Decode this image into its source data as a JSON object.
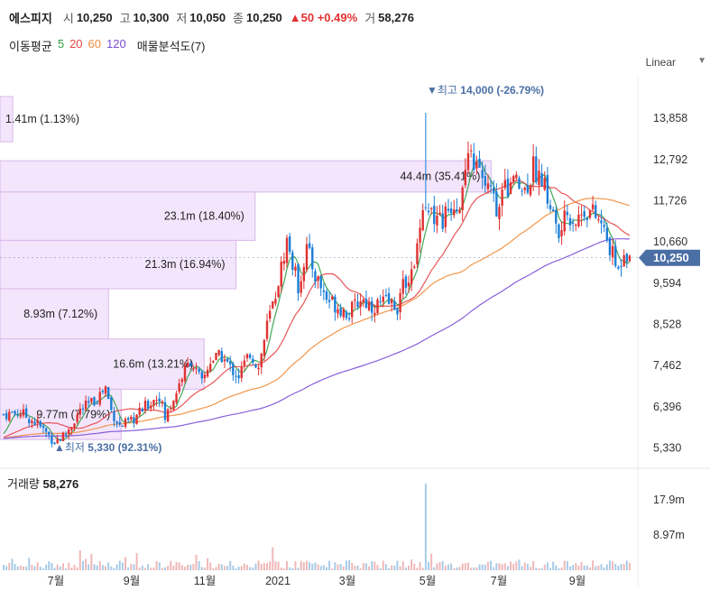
{
  "header": {
    "name": "에스피지",
    "open_label": "시",
    "open": "10,250",
    "high_label": "고",
    "high": "10,300",
    "low_label": "저",
    "low": "10,050",
    "close_label": "종",
    "close": "10,250",
    "change": "▲50 +0.49%",
    "vol_label": "거",
    "volume": "58,276"
  },
  "ma": {
    "label": "이동평균",
    "periods": [
      "5",
      "20",
      "60",
      "120"
    ],
    "colors": [
      "#2f9e44",
      "#e64545",
      "#f08c3a",
      "#7b4fd6"
    ],
    "vp_label": "매물분석도(7)"
  },
  "scale_button": "Linear",
  "colors": {
    "up": "#e03131",
    "down": "#1c7ed6",
    "vp": "#f3e5fb",
    "vp_border": "#d9b8ea"
  },
  "chart_data": [
    {
      "type": "candlestick",
      "title": "",
      "y_ticks": [
        13858,
        12792,
        11726,
        10660,
        9594,
        8528,
        7462,
        6396,
        5330
      ],
      "y_tick_labels": [
        "13,858",
        "12,792",
        "11,726",
        "10,660",
        "9,594",
        "8,528",
        "7,462",
        "6,396",
        "5,330"
      ],
      "ylim": [
        4900,
        14700
      ],
      "x_tick_labels": [
        "7월",
        "9월",
        "11월",
        "2021",
        "3월",
        "5월",
        "7월",
        "9월"
      ],
      "current_price": 10250,
      "current_price_label": "10,250",
      "max_marker": {
        "value": 14000,
        "label": "최고",
        "value_label": "14,000",
        "pct": "(-26.79%)"
      },
      "min_marker": {
        "value": 5330,
        "label": "최저",
        "value_label": "5,330",
        "pct": "(92.31%)"
      },
      "volume_profile": [
        {
          "low": 13250,
          "high": 14700,
          "value_label": "1.41m",
          "pct": "(1.13%)",
          "rel": 0.02
        },
        {
          "low": 11950,
          "high": 12760,
          "value_label": "44.4m",
          "pct": "(35.41%)",
          "rel": 0.77
        },
        {
          "low": 10700,
          "high": 11950,
          "value_label": "23.1m",
          "pct": "(18.40%)",
          "rel": 0.4
        },
        {
          "low": 9450,
          "high": 10700,
          "value_label": "21.3m",
          "pct": "(16.94%)",
          "rel": 0.37
        },
        {
          "low": 8150,
          "high": 9450,
          "value_label": "8.93m",
          "pct": "(7.12%)",
          "rel": 0.17
        },
        {
          "low": 6850,
          "high": 8150,
          "value_label": "16.6m",
          "pct": "(13.21%)",
          "rel": 0.32
        },
        {
          "low": 5550,
          "high": 6850,
          "value_label": "9.77m",
          "pct": "(7.79%)",
          "rel": 0.19
        }
      ],
      "price_path": [
        [
          0,
          6200
        ],
        [
          6,
          6250
        ],
        [
          12,
          5950
        ],
        [
          18,
          5500
        ],
        [
          22,
          5700
        ],
        [
          27,
          6300
        ],
        [
          32,
          6550
        ],
        [
          36,
          6900
        ],
        [
          38,
          6300
        ],
        [
          41,
          5900
        ],
        [
          45,
          6000
        ],
        [
          50,
          6400
        ],
        [
          55,
          6700
        ],
        [
          57,
          6100
        ],
        [
          60,
          6600
        ],
        [
          63,
          7200
        ],
        [
          66,
          7600
        ],
        [
          70,
          7000
        ],
        [
          73,
          7600
        ],
        [
          77,
          7700
        ],
        [
          80,
          7400
        ],
        [
          83,
          7200
        ],
        [
          87,
          7800
        ],
        [
          90,
          7400
        ],
        [
          93,
          8500
        ],
        [
          96,
          9300
        ],
        [
          100,
          10700
        ],
        [
          104,
          9500
        ],
        [
          107,
          10500
        ],
        [
          110,
          9800
        ],
        [
          114,
          9200
        ],
        [
          118,
          9000
        ],
        [
          122,
          8800
        ],
        [
          126,
          9200
        ],
        [
          130,
          9000
        ],
        [
          135,
          9100
        ],
        [
          139,
          9000
        ],
        [
          142,
          9700
        ],
        [
          145,
          9900
        ],
        [
          147,
          11300
        ],
        [
          149,
          11700
        ],
        [
          152,
          11400
        ],
        [
          155,
          11200
        ],
        [
          158,
          11600
        ],
        [
          161,
          11700
        ],
        [
          163,
          12400
        ],
        [
          165,
          12900
        ],
        [
          168,
          12400
        ],
        [
          171,
          12000
        ],
        [
          174,
          11600
        ],
        [
          177,
          12000
        ],
        [
          180,
          12200
        ],
        [
          184,
          12000
        ],
        [
          187,
          12600
        ],
        [
          190,
          12300
        ],
        [
          193,
          11600
        ],
        [
          196,
          10800
        ],
        [
          199,
          11400
        ],
        [
          202,
          11200
        ],
        [
          205,
          11500
        ],
        [
          208,
          11400
        ],
        [
          211,
          11100
        ],
        [
          214,
          10500
        ],
        [
          217,
          9900
        ],
        [
          219,
          10500
        ],
        [
          221,
          10250
        ]
      ],
      "spikes": [
        {
          "i": 149,
          "high": 14000
        }
      ],
      "volume": {
        "y_ticks": [
          17.9,
          8.97
        ],
        "y_tick_labels": [
          "17.9m",
          "8.97m"
        ],
        "label": "거래량",
        "value": "58,276",
        "spike_index": 149,
        "spike_value": 17.9
      }
    }
  ]
}
